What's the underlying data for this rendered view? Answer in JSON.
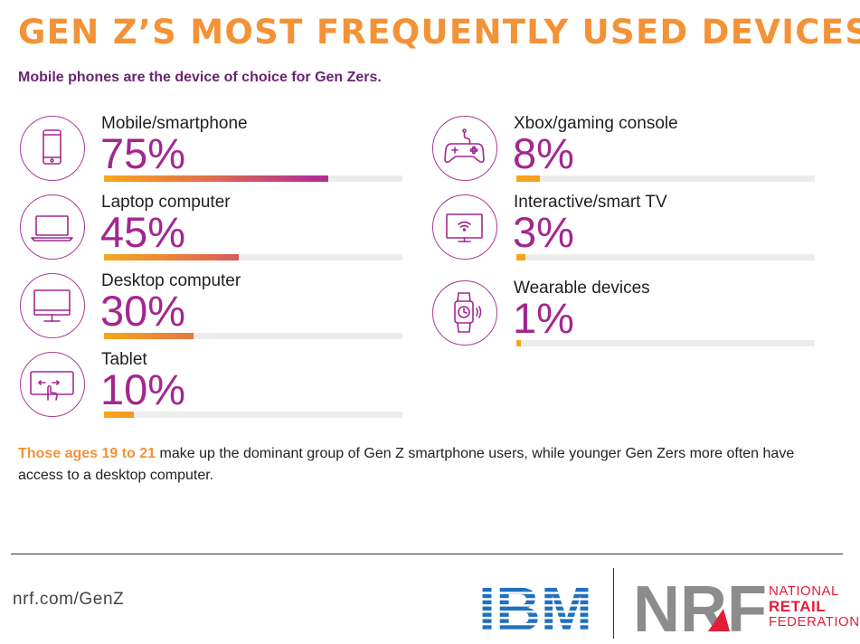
{
  "title": "GEN Z’S MOST FREQUENTLY USED DEVICES",
  "subtitle": "Mobile phones are the device of choice for Gen Zers.",
  "chart_data": {
    "type": "bar",
    "title": "GEN Z’S MOST FREQUENTLY USED DEVICES",
    "subtitle": "Mobile phones are the device of choice for Gen Zers.",
    "xlim": [
      0,
      100
    ],
    "items": [
      {
        "key": "mobile",
        "label": "Mobile/smartphone",
        "value": 75,
        "display": "75%",
        "icon": "smartphone-icon"
      },
      {
        "key": "laptop",
        "label": "Laptop computer",
        "value": 45,
        "display": "45%",
        "icon": "laptop-icon"
      },
      {
        "key": "desktop",
        "label": "Desktop computer",
        "value": 30,
        "display": "30%",
        "icon": "desktop-monitor-icon"
      },
      {
        "key": "tablet",
        "label": "Tablet",
        "value": 10,
        "display": "10%",
        "icon": "tablet-touch-icon"
      },
      {
        "key": "console",
        "label": "Xbox/gaming console",
        "value": 8,
        "display": "8%",
        "icon": "game-controller-icon"
      },
      {
        "key": "tv",
        "label": "Interactive/smart TV",
        "value": 3,
        "display": "3%",
        "icon": "smart-tv-icon"
      },
      {
        "key": "wearable",
        "label": "Wearable devices",
        "value": 1,
        "display": "1%",
        "icon": "smartwatch-icon"
      }
    ]
  },
  "footnote": {
    "highlight": "Those ages 19 to 21",
    "text": " make up the dominant group of Gen Z smartphone users, while younger Gen Zers more often have access to a desktop computer."
  },
  "footer": {
    "url": "nrf.com/GenZ",
    "ibm_logo": "IBM",
    "nrf_logo": "NRF",
    "nrf_name_line1": "NATIONAL",
    "nrf_name_line2": "RETAIL",
    "nrf_name_line3": "FEDERATION"
  },
  "colors": {
    "title": "#f39236",
    "subtitle": "#6a2473",
    "percent": "#a3278f",
    "bar_start": "#f7a81b",
    "bar_end": "#a3278f",
    "track": "#ececec",
    "ibm": "#1f70c1",
    "nrf_gray": "#8c8c8c",
    "nrf_red": "#e31d38"
  }
}
